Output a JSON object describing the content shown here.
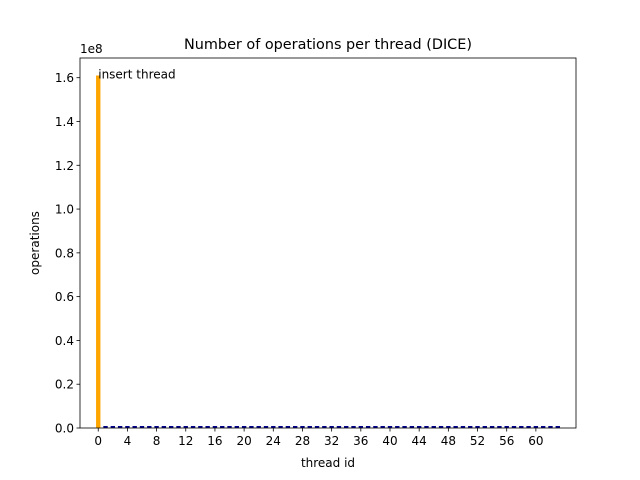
{
  "chart_data": {
    "type": "bar",
    "title": "Number of operations per thread (DICE)",
    "xlabel": "thread id",
    "ylabel": "operations",
    "y_offset_label": "1e8",
    "xlim": [
      -2.5,
      65.5
    ],
    "ylim": [
      0,
      169000000.0
    ],
    "x_ticks": [
      0,
      4,
      8,
      12,
      16,
      20,
      24,
      28,
      32,
      36,
      40,
      44,
      48,
      52,
      56,
      60
    ],
    "y_ticks": [
      0,
      20000000.0,
      40000000.0,
      60000000.0,
      80000000.0,
      100000000.0,
      120000000.0,
      140000000.0,
      160000000.0
    ],
    "y_tick_labels": [
      "0.0",
      "0.2",
      "0.4",
      "0.6",
      "0.8",
      "1.0",
      "1.2",
      "1.4",
      "1.6"
    ],
    "grid": false,
    "threads": 64,
    "series": [
      {
        "values": [
          161000000
        ],
        "x_start": 0,
        "color": "#ffa500"
      },
      {
        "x_start": 1,
        "x_end": 63,
        "value": 900000,
        "color": "#00008b"
      }
    ],
    "annotations": [
      {
        "text": "insert thread",
        "x": 0,
        "y": 161000000
      }
    ]
  }
}
